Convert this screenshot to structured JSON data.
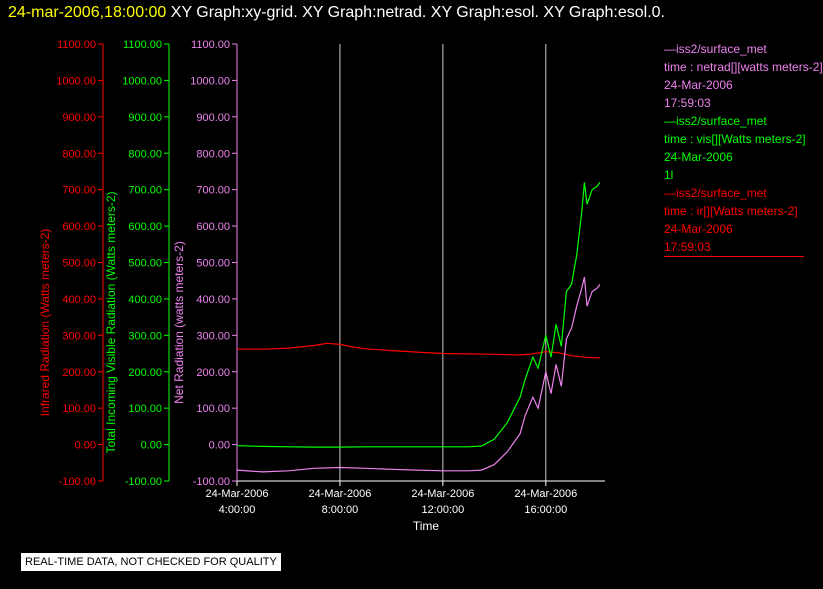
{
  "header": {
    "timestamp": "24-mar-2006,18:00:00",
    "title": "XY Graph:xy-grid.  XY Graph:netrad.  XY Graph:esol.  XY Graph:esol.0."
  },
  "footer": {
    "notice": "REAL-TIME DATA, NOT CHECKED FOR QUALITY"
  },
  "legend": [
    {
      "source": "—iss2/surface_met",
      "variable": "time : netrad[][watts meters-2]",
      "date": "24-Mar-2006",
      "time": "17:59:03",
      "color": "#ee82ee"
    },
    {
      "source": "—iss2/surface_met",
      "variable": "time : vis[][Watts meters-2]",
      "date": "24-Mar-2006",
      "time": "1l",
      "color": "#00ff00"
    },
    {
      "source": "—iss2/surface_met",
      "variable": "time : ir[][Watts meters-2]",
      "date": "24-Mar-2006",
      "time": "17:59:03",
      "color": "#ff0000"
    }
  ],
  "chart_data": {
    "type": "line",
    "xlabel": "Time",
    "x_ticks": [
      {
        "hours": 4,
        "date": "24-Mar-2006",
        "time": "4:00:00"
      },
      {
        "hours": 8,
        "date": "24-Mar-2006",
        "time": "8:00:00"
      },
      {
        "hours": 12,
        "date": "24-Mar-2006",
        "time": "12:00:00"
      },
      {
        "hours": 16,
        "date": "24-Mar-2006",
        "time": "16:00:00"
      }
    ],
    "xlim_hours": [
      4,
      18.3
    ],
    "ylim": [
      -100,
      1100
    ],
    "y_ticks": [
      "1100.00",
      "1000.00",
      "900.00",
      "800.00",
      "700.00",
      "600.00",
      "500.00",
      "400.00",
      "300.00",
      "200.00",
      "100.00",
      "0.00",
      "-100.00"
    ],
    "grid": true,
    "axes": [
      {
        "label": "Infrared Radiation (Watts meters-2)",
        "color": "#ff0000"
      },
      {
        "label": "Total Incoming Visible Radiation (Watts meters-2)",
        "color": "#00ff00"
      },
      {
        "label": "Net Radiation (watts meters-2)",
        "color": "#ee82ee"
      }
    ],
    "series": [
      {
        "color": "#ff0000",
        "x_hours": [
          4,
          5,
          6,
          7,
          7.5,
          8,
          8.5,
          9,
          10,
          11,
          12,
          13,
          14,
          15,
          15.5,
          16,
          16.5,
          17,
          17.5,
          18,
          18.1
        ],
        "values": [
          262,
          262,
          265,
          272,
          278,
          275,
          268,
          263,
          258,
          254,
          250,
          249,
          248,
          246,
          249,
          255,
          252,
          244,
          240,
          238,
          238
        ]
      },
      {
        "color": "#00ff00",
        "x_hours": [
          4,
          5,
          6,
          7,
          8,
          9,
          10,
          11,
          12,
          13,
          13.5,
          14,
          14.5,
          15,
          15.2,
          15.5,
          15.7,
          16,
          16.2,
          16.4,
          16.6,
          16.8,
          17,
          17.2,
          17.4,
          17.5,
          17.6,
          17.8,
          18,
          18.1
        ],
        "values": [
          -3,
          -5,
          -6,
          -7,
          -7,
          -6,
          -6,
          -6,
          -6,
          -6,
          -4,
          15,
          60,
          130,
          180,
          240,
          210,
          300,
          240,
          330,
          270,
          420,
          440,
          520,
          640,
          720,
          660,
          700,
          710,
          720
        ]
      },
      {
        "color": "#ee82ee",
        "x_hours": [
          4,
          5,
          6,
          7,
          8,
          9,
          10,
          11,
          12,
          13,
          13.5,
          14,
          14.5,
          15,
          15.2,
          15.5,
          15.7,
          16,
          16.2,
          16.4,
          16.6,
          16.8,
          17,
          17.2,
          17.4,
          17.5,
          17.6,
          17.8,
          18,
          18.1
        ],
        "values": [
          -70,
          -75,
          -72,
          -65,
          -63,
          -65,
          -68,
          -70,
          -72,
          -72,
          -70,
          -55,
          -20,
          30,
          80,
          130,
          100,
          200,
          140,
          220,
          160,
          290,
          320,
          380,
          430,
          460,
          380,
          420,
          430,
          440
        ]
      }
    ]
  }
}
